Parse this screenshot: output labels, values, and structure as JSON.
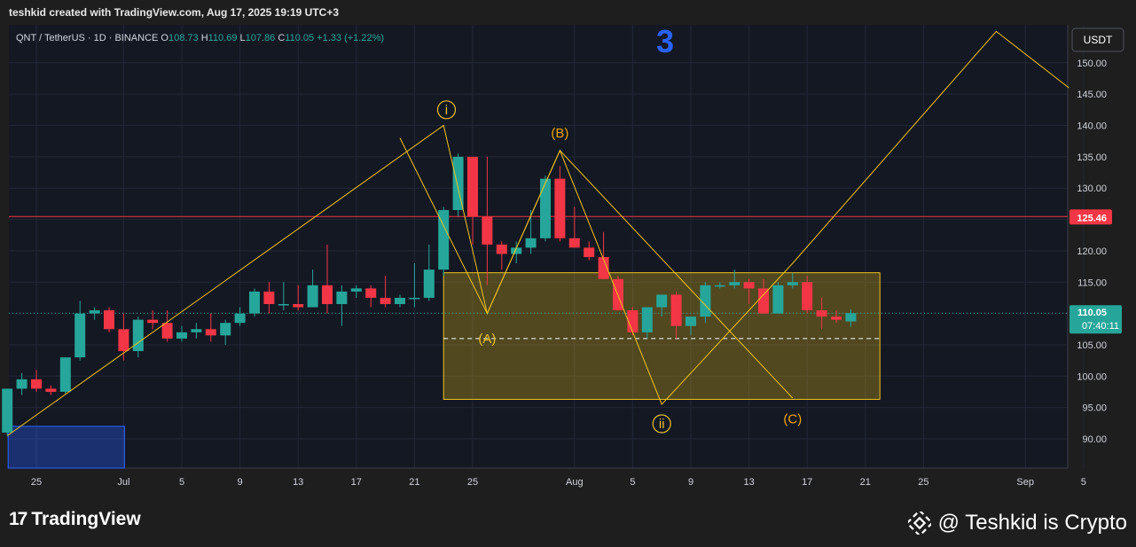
{
  "header": {
    "caption": "teshkid created with TradingView.com, Aug 17, 2025 19:19 UTC+3"
  },
  "colors": {
    "up": "#26a69a",
    "down": "#f23645",
    "fib": "#f0c419",
    "wave": "#e6c229",
    "box": "#f0c419",
    "resistance": "#f23645",
    "label_blue": "#2962ff"
  },
  "chart_data": {
    "type": "candlestick",
    "symbol_line": {
      "title": "QNT / TetherUS · 1D · BINANCE",
      "o_label": "O",
      "o": "108.73",
      "h_label": "H",
      "h": "110.69",
      "l_label": "L",
      "l": "107.86",
      "c_label": "C",
      "c": "110.05",
      "change": "+1.33 (+1.22%)"
    },
    "currency_button": "USDT",
    "wave_number": "3",
    "y_axis": {
      "min": 85,
      "max": 155,
      "ticks": [
        "150.00",
        "145.00",
        "140.00",
        "135.00",
        "130.00",
        "125.00",
        "120.00",
        "115.00",
        "110.00",
        "105.00",
        "100.00",
        "95.00",
        "90.00"
      ]
    },
    "x_axis": {
      "ticks": [
        {
          "d": 0,
          "label": "25"
        },
        {
          "d": 6,
          "label": "Jul"
        },
        {
          "d": 10,
          "label": "5"
        },
        {
          "d": 14,
          "label": "9"
        },
        {
          "d": 18,
          "label": "13"
        },
        {
          "d": 22,
          "label": "17"
        },
        {
          "d": 26,
          "label": "21"
        },
        {
          "d": 30,
          "label": "25"
        },
        {
          "d": 37,
          "label": "Aug"
        },
        {
          "d": 41,
          "label": "5"
        },
        {
          "d": 45,
          "label": "9"
        },
        {
          "d": 49,
          "label": "13"
        },
        {
          "d": 53,
          "label": "17"
        },
        {
          "d": 57,
          "label": "21"
        },
        {
          "d": 61,
          "label": "25"
        },
        {
          "d": 68,
          "label": "Sep"
        },
        {
          "d": 72,
          "label": "5"
        }
      ]
    },
    "candles": [
      [
        -2,
        91,
        98,
        90.5,
        98
      ],
      [
        -1,
        98,
        100.5,
        97,
        99.5
      ],
      [
        0,
        99.5,
        101,
        97.5,
        98
      ],
      [
        1,
        98,
        98.5,
        97,
        97.5
      ],
      [
        2,
        97.5,
        103,
        97,
        103
      ],
      [
        3,
        103,
        112,
        102.5,
        110
      ],
      [
        4,
        110,
        111,
        109,
        110.5
      ],
      [
        5,
        110.5,
        111,
        107,
        107.5
      ],
      [
        6,
        107.5,
        110,
        102.5,
        104
      ],
      [
        7,
        104,
        109.5,
        103,
        109
      ],
      [
        8,
        109,
        110.5,
        107.5,
        108.5
      ],
      [
        9,
        108.5,
        110.5,
        105.5,
        106
      ],
      [
        10,
        106,
        108,
        105.5,
        107
      ],
      [
        11,
        107,
        108.5,
        106,
        107.5
      ],
      [
        12,
        107.5,
        110,
        105.5,
        106.5
      ],
      [
        13,
        106.5,
        109,
        105,
        108.5
      ],
      [
        14,
        108.5,
        111,
        108,
        110
      ],
      [
        15,
        110,
        114,
        109.5,
        113.5
      ],
      [
        16,
        113.5,
        115,
        110,
        111.5
      ],
      [
        17,
        111.5,
        115,
        110.5,
        111.5
      ],
      [
        18,
        111.5,
        114.5,
        110.5,
        111
      ],
      [
        19,
        111,
        117,
        111,
        114.5
      ],
      [
        20,
        114.5,
        121,
        110,
        111.5
      ],
      [
        21,
        111.5,
        114.5,
        108,
        113.5
      ],
      [
        22,
        113.5,
        114.5,
        112.5,
        114
      ],
      [
        23,
        114,
        114.5,
        111,
        112.5
      ],
      [
        24,
        112.5,
        116,
        111,
        111.5
      ],
      [
        25,
        111.5,
        113,
        111,
        112.5
      ],
      [
        26,
        112.5,
        118,
        111,
        112.5
      ],
      [
        27,
        112.5,
        121,
        112,
        117
      ],
      [
        28,
        117,
        127,
        116,
        126.5
      ],
      [
        29,
        126.5,
        135.5,
        125.5,
        135
      ],
      [
        30,
        135,
        135,
        121,
        125.5
      ],
      [
        31,
        125.5,
        135,
        114.5,
        121
      ],
      [
        32,
        121,
        121.5,
        117,
        119.5
      ],
      [
        33,
        119.5,
        121.5,
        118,
        120.5
      ],
      [
        34,
        120.5,
        126.5,
        119.5,
        122
      ],
      [
        35,
        122,
        132,
        121.5,
        131.5
      ],
      [
        36,
        131.5,
        133.5,
        121.5,
        122
      ],
      [
        37,
        122,
        127,
        120.5,
        120.5
      ],
      [
        38,
        120.5,
        121.5,
        118.5,
        119
      ],
      [
        39,
        119,
        123,
        115.5,
        115.5
      ],
      [
        40,
        115.5,
        116,
        110.5,
        110.5
      ],
      [
        41,
        110.5,
        111,
        106.5,
        107
      ],
      [
        42,
        107,
        111,
        106,
        111
      ],
      [
        43,
        111,
        113,
        109.5,
        113
      ],
      [
        44,
        113,
        113.5,
        106,
        108
      ],
      [
        45,
        108,
        109,
        106.5,
        109.5
      ],
      [
        46,
        109.5,
        115,
        108.5,
        114.5
      ],
      [
        47,
        114.5,
        115,
        114,
        114.5
      ],
      [
        48,
        114.5,
        117,
        114,
        115
      ],
      [
        49,
        115,
        115.5,
        111.5,
        114
      ],
      [
        50,
        114,
        115.5,
        110,
        110
      ],
      [
        51,
        110,
        115,
        110,
        114.5
      ],
      [
        52,
        114.5,
        116.5,
        114,
        115
      ],
      [
        53,
        115,
        116,
        110,
        110.5
      ],
      [
        54,
        110.5,
        112.5,
        107.5,
        109.5
      ],
      [
        55,
        109.5,
        110.5,
        108.5,
        109
      ],
      [
        56,
        108.73,
        110.69,
        107.86,
        110.05
      ]
    ],
    "resistance": {
      "value": 125.46,
      "label": "125.46"
    },
    "last_price": {
      "value": 110.05,
      "label": "110.05",
      "countdown": "07:40:11"
    },
    "zone": {
      "d_start": 28,
      "d_end": 58,
      "top": 116.5,
      "bottom": 96.3,
      "mid": 106
    },
    "wave_path": [
      [
        -2,
        90.5
      ],
      [
        28,
        140
      ],
      [
        31,
        110
      ],
      [
        36,
        136
      ],
      [
        43,
        95.5
      ],
      [
        52,
        118
      ],
      [
        66,
        155
      ],
      [
        71,
        146
      ]
    ],
    "abc_path": [
      [
        25,
        138
      ],
      [
        31,
        110
      ],
      [
        36,
        136
      ],
      [
        52,
        96.5
      ]
    ],
    "wave_labels": [
      {
        "d": 28.2,
        "v": 142.5,
        "text": "i",
        "circle": true,
        "color": "#e6c229"
      },
      {
        "d": 43,
        "v": 92.4,
        "text": "ii",
        "circle": true,
        "color": "#e6c229"
      },
      {
        "d": 31,
        "v": 106,
        "text": "(A)",
        "circle": false,
        "color": "#e6c229"
      },
      {
        "d": 36,
        "v": 138.8,
        "text": "(B)",
        "circle": false,
        "color": "#f0a500"
      },
      {
        "d": 52,
        "v": 93.2,
        "text": "(C)",
        "circle": false,
        "color": "#f0a500"
      }
    ],
    "blue_box": {
      "d_start": -2,
      "d_end": 6,
      "top": 92,
      "bottom": 85
    }
  },
  "footer": {
    "brand": "TradingView",
    "brand_mark": "17",
    "watermark": "@ Teshkid is Crypto"
  }
}
